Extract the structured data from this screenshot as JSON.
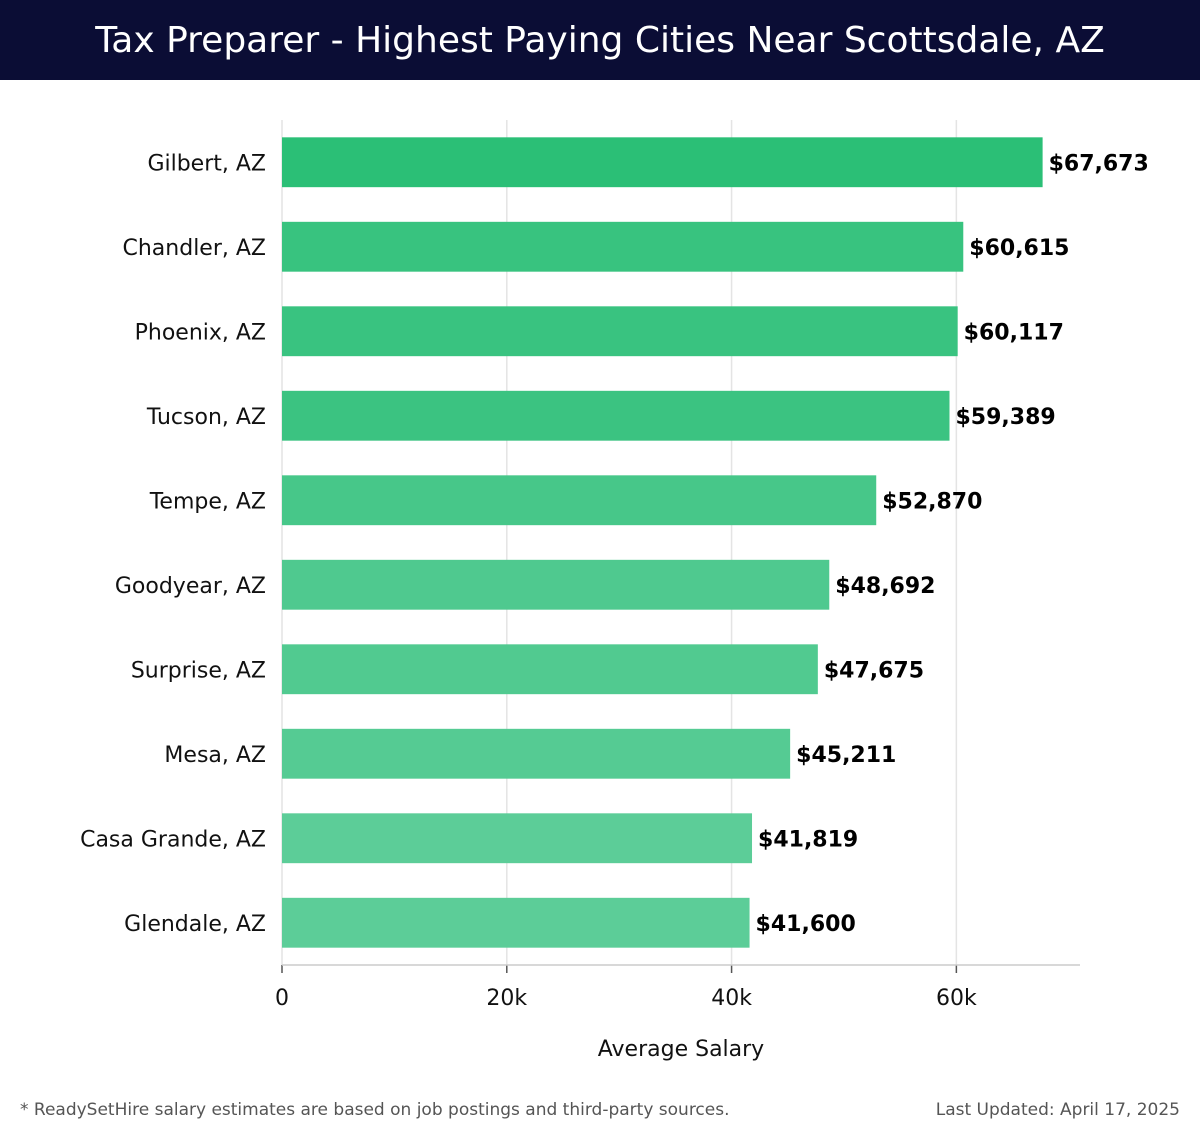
{
  "header": {
    "title": "Tax Preparer - Highest Paying Cities Near Scottsdale, AZ"
  },
  "chart_data": {
    "type": "bar",
    "orientation": "horizontal",
    "title": "Tax Preparer - Highest Paying Cities Near Scottsdale, AZ",
    "xlabel": "Average Salary",
    "ylabel": "",
    "xlim": [
      0,
      71000
    ],
    "x_ticks": [
      0,
      20000,
      40000,
      60000
    ],
    "x_tick_labels": [
      "0",
      "20k",
      "40k",
      "60k"
    ],
    "grid": "vertical",
    "categories": [
      "Gilbert, AZ",
      "Chandler, AZ",
      "Phoenix, AZ",
      "Tucson, AZ",
      "Tempe, AZ",
      "Goodyear, AZ",
      "Surprise, AZ",
      "Mesa, AZ",
      "Casa Grande, AZ",
      "Glendale, AZ"
    ],
    "values": [
      67673,
      60615,
      60117,
      59389,
      52870,
      48692,
      47675,
      45211,
      41819,
      41600
    ],
    "value_labels": [
      "$67,673",
      "$60,615",
      "$60,117",
      "$59,389",
      "$52,870",
      "$48,692",
      "$47,675",
      "$45,211",
      "$41,819",
      "$41,600"
    ],
    "colors": {
      "bar_max": "#2bbf76",
      "bar_min": "#5ccd98",
      "grid": "#e4e4e4",
      "axis": "#cccccc"
    }
  },
  "footer": {
    "note": "* ReadySetHire salary estimates are based on job postings and third-party sources.",
    "updated": "Last Updated: April 17, 2025"
  }
}
